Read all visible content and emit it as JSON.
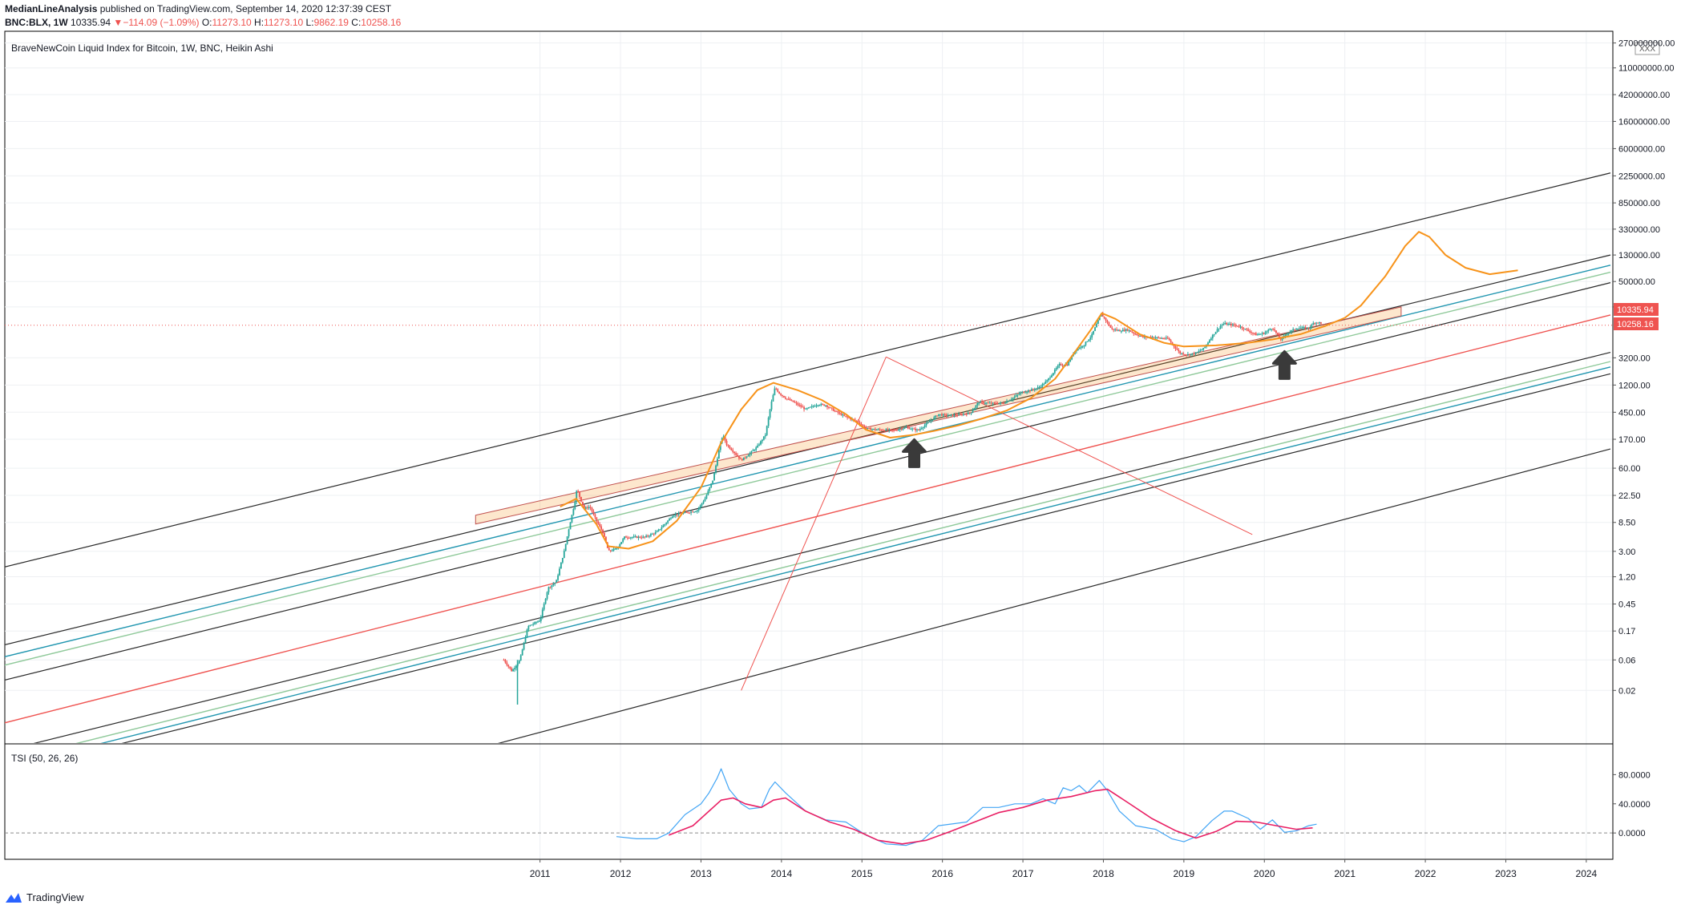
{
  "header": {
    "author": "MedianLineAnalysis",
    "published": "published on TradingView.com, September 14, 2020 12:37:39 CEST",
    "symbol": "BNC:BLX, 1W",
    "last": "10335.94",
    "change_arrow": "▼",
    "change": "−114.09 (−1.09%)",
    "o_label": "O:",
    "o_value": "11273.10",
    "h_label": "H:",
    "h_value": "11273.10",
    "l_label": "L:",
    "l_value": "9862.19",
    "c_label": "C:",
    "c_value": "10258.16"
  },
  "chart_title": "BraveNewCoin Liquid Index for Bitcoin, 1W, BNC, Heikin Ashi",
  "price_badges": [
    "10335.94",
    "10258.16"
  ],
  "scale_badge": "XXX",
  "indicator_label": "TSI (50, 26, 26)",
  "footer_brand": "TradingView",
  "colors": {
    "up": "#26a69a",
    "down": "#ef5350",
    "orange": "#f7931a",
    "tsi": "#42a5f5",
    "signal": "#e91e63",
    "black_line": "#2a2a2a",
    "blue_line": "#2196b0",
    "green_line": "#8fc99a",
    "red_line": "#ef5350"
  },
  "chart_data": [
    {
      "type": "candlestick",
      "style": "Heikin Ashi",
      "title": "BraveNewCoin Liquid Index for Bitcoin, 1W, BNC, Heikin Ashi",
      "y_scale": "log",
      "ylim": [
        0.003,
        400000000
      ],
      "xlim": [
        2004.35,
        2024.33
      ],
      "x_ticks": [
        "2011",
        "2012",
        "2013",
        "2014",
        "2015",
        "2016",
        "2017",
        "2018",
        "2019",
        "2020",
        "2021",
        "2022",
        "2023",
        "2024"
      ],
      "y_ticks": [
        "270000000.00",
        "110000000.00",
        "42000000.00",
        "16000000.00",
        "6000000.00",
        "2250000.00",
        "850000.00",
        "330000.00",
        "130000.00",
        "50000.00",
        "20000.00",
        "3200.00",
        "1200.00",
        "450.00",
        "170.00",
        "60.00",
        "22.50",
        "8.50",
        "3.00",
        "1.20",
        "0.45",
        "0.17",
        "0.06",
        "0.02"
      ],
      "price_path": [
        [
          2010.55,
          0.06
        ],
        [
          2010.65,
          0.04
        ],
        [
          2010.75,
          0.06
        ],
        [
          2010.85,
          0.2
        ],
        [
          2011.0,
          0.25
        ],
        [
          2011.1,
          0.8
        ],
        [
          2011.2,
          1.0
        ],
        [
          2011.3,
          3
        ],
        [
          2011.37,
          8
        ],
        [
          2011.43,
          17
        ],
        [
          2011.46,
          29
        ],
        [
          2011.5,
          20
        ],
        [
          2011.55,
          14
        ],
        [
          2011.62,
          15
        ],
        [
          2011.7,
          9
        ],
        [
          2011.78,
          6
        ],
        [
          2011.85,
          3
        ],
        [
          2011.95,
          3.3
        ],
        [
          2012.05,
          5
        ],
        [
          2012.15,
          5
        ],
        [
          2012.3,
          5
        ],
        [
          2012.45,
          6
        ],
        [
          2012.55,
          8
        ],
        [
          2012.65,
          11
        ],
        [
          2012.8,
          12
        ],
        [
          2012.95,
          13
        ],
        [
          2013.05,
          20
        ],
        [
          2013.15,
          40
        ],
        [
          2013.22,
          110
        ],
        [
          2013.27,
          200
        ],
        [
          2013.32,
          140
        ],
        [
          2013.4,
          110
        ],
        [
          2013.5,
          80
        ],
        [
          2013.6,
          100
        ],
        [
          2013.7,
          130
        ],
        [
          2013.8,
          200
        ],
        [
          2013.87,
          600
        ],
        [
          2013.92,
          1100
        ],
        [
          2013.97,
          900
        ],
        [
          2014.05,
          750
        ],
        [
          2014.15,
          650
        ],
        [
          2014.3,
          500
        ],
        [
          2014.45,
          600
        ],
        [
          2014.55,
          580
        ],
        [
          2014.65,
          480
        ],
        [
          2014.8,
          380
        ],
        [
          2014.95,
          320
        ],
        [
          2015.05,
          250
        ],
        [
          2015.2,
          240
        ],
        [
          2015.4,
          235
        ],
        [
          2015.55,
          260
        ],
        [
          2015.7,
          235
        ],
        [
          2015.85,
          330
        ],
        [
          2015.95,
          420
        ],
        [
          2016.05,
          400
        ],
        [
          2016.2,
          410
        ],
        [
          2016.35,
          440
        ],
        [
          2016.45,
          650
        ],
        [
          2016.6,
          620
        ],
        [
          2016.75,
          620
        ],
        [
          2016.85,
          720
        ],
        [
          2016.97,
          900
        ],
        [
          2017.1,
          1000
        ],
        [
          2017.2,
          1100
        ],
        [
          2017.3,
          1400
        ],
        [
          2017.45,
          2500
        ],
        [
          2017.55,
          2500
        ],
        [
          2017.65,
          4200
        ],
        [
          2017.75,
          5000
        ],
        [
          2017.85,
          7000
        ],
        [
          2017.92,
          11000
        ],
        [
          2017.97,
          15500
        ],
        [
          2018.02,
          13000
        ],
        [
          2018.1,
          9000
        ],
        [
          2018.2,
          8500
        ],
        [
          2018.3,
          8800
        ],
        [
          2018.4,
          7500
        ],
        [
          2018.5,
          6700
        ],
        [
          2018.6,
          6800
        ],
        [
          2018.7,
          6500
        ],
        [
          2018.8,
          6400
        ],
        [
          2018.87,
          5000
        ],
        [
          2018.95,
          3800
        ],
        [
          2019.05,
          3600
        ],
        [
          2019.15,
          3800
        ],
        [
          2019.25,
          4500
        ],
        [
          2019.35,
          7000
        ],
        [
          2019.45,
          10000
        ],
        [
          2019.5,
          11000
        ],
        [
          2019.6,
          10500
        ],
        [
          2019.7,
          9800
        ],
        [
          2019.8,
          8500
        ],
        [
          2019.9,
          7300
        ],
        [
          2020.0,
          7800
        ],
        [
          2020.1,
          9500
        ],
        [
          2020.2,
          6200
        ],
        [
          2020.3,
          8000
        ],
        [
          2020.4,
          9300
        ],
        [
          2020.5,
          9400
        ],
        [
          2020.55,
          9200
        ],
        [
          2020.62,
          11500
        ],
        [
          2020.7,
          11300
        ],
        [
          2020.71,
          10258
        ]
      ],
      "projection_curve": [
        [
          2011.25,
          15
        ],
        [
          2011.45,
          20
        ],
        [
          2011.7,
          8
        ],
        [
          2011.85,
          3.6
        ],
        [
          2012.1,
          3.3
        ],
        [
          2012.4,
          4.3
        ],
        [
          2012.7,
          9
        ],
        [
          2013.0,
          30
        ],
        [
          2013.25,
          150
        ],
        [
          2013.5,
          500
        ],
        [
          2013.7,
          1000
        ],
        [
          2013.9,
          1300
        ],
        [
          2014.2,
          1000
        ],
        [
          2014.5,
          700
        ],
        [
          2014.8,
          420
        ],
        [
          2015.05,
          240
        ],
        [
          2015.35,
          180
        ],
        [
          2015.65,
          200
        ],
        [
          2015.9,
          230
        ],
        [
          2016.2,
          280
        ],
        [
          2016.5,
          360
        ],
        [
          2016.8,
          480
        ],
        [
          2017.1,
          750
        ],
        [
          2017.4,
          1500
        ],
        [
          2017.65,
          4000
        ],
        [
          2017.85,
          9000
        ],
        [
          2017.98,
          16000
        ],
        [
          2018.15,
          13000
        ],
        [
          2018.45,
          7500
        ],
        [
          2018.75,
          5500
        ],
        [
          2019.0,
          4800
        ],
        [
          2019.4,
          5000
        ],
        [
          2019.8,
          5500
        ],
        [
          2020.1,
          6200
        ],
        [
          2020.45,
          7500
        ],
        [
          2020.75,
          10000
        ],
        [
          2021.0,
          13500
        ],
        [
          2021.2,
          21000
        ],
        [
          2021.5,
          60000
        ],
        [
          2021.75,
          180000
        ],
        [
          2021.92,
          300000
        ],
        [
          2022.05,
          250000
        ],
        [
          2022.25,
          130000
        ],
        [
          2022.5,
          82000
        ],
        [
          2022.8,
          65000
        ],
        [
          2023.15,
          75000
        ]
      ],
      "channel_lines": [
        {
          "color": "black",
          "from": [
            2004.3,
            1.65
          ],
          "to": [
            2024.3,
            2500000
          ]
        },
        {
          "color": "black",
          "from": [
            2004.3,
            0.1
          ],
          "to": [
            2024.3,
            130000
          ]
        },
        {
          "color": "blue",
          "from": [
            2004.3,
            0.065
          ],
          "to": [
            2024.3,
            90000
          ]
        },
        {
          "color": "green",
          "from": [
            2004.3,
            0.048
          ],
          "to": [
            2024.3,
            70000
          ]
        },
        {
          "color": "black",
          "from": [
            2004.3,
            0.028
          ],
          "to": [
            2024.3,
            48000
          ]
        },
        {
          "color": "red",
          "from": [
            2004.3,
            0.006
          ],
          "to": [
            2024.3,
            15000
          ]
        },
        {
          "color": "black",
          "from": [
            2004.3,
            0.0022
          ],
          "to": [
            2024.3,
            3900
          ]
        },
        {
          "color": "green",
          "from": [
            2004.3,
            0.0015
          ],
          "to": [
            2024.3,
            2800
          ]
        },
        {
          "color": "blue",
          "from": [
            2004.3,
            0.0012
          ],
          "to": [
            2024.3,
            2300
          ]
        },
        {
          "color": "black",
          "from": [
            2004.3,
            0.001
          ],
          "to": [
            2024.3,
            1800
          ]
        },
        {
          "color": "black",
          "from": [
            2007.5,
            0.0003
          ],
          "to": [
            2024.3,
            120
          ]
        }
      ],
      "resistance_band": {
        "from": [
          2010.2,
          11
        ],
        "to": [
          2021.7,
          20000
        ],
        "lower_from": [
          2010.2,
          8
        ],
        "lower_to": [
          2021.7,
          14500
        ]
      },
      "red_cross_lines": [
        {
          "from": [
            2013.5,
            0.02
          ],
          "to": [
            2015.3,
            3300
          ]
        },
        {
          "from": [
            2015.3,
            3300
          ],
          "to": [
            2019.85,
            5.5
          ]
        }
      ],
      "arrows": [
        {
          "x": 2015.65,
          "y": 100,
          "label": "up"
        },
        {
          "x": 2020.25,
          "y": 2400,
          "label": "up"
        }
      ],
      "last_price_line": 10335.94
    },
    {
      "type": "line",
      "title": "TSI (50, 26, 26)",
      "ylim": [
        -35,
        120
      ],
      "y_ticks": [
        "80.0000",
        "40.0000",
        "0.0000"
      ],
      "zero_line": 0,
      "series": [
        {
          "name": "TSI",
          "color": "tsi",
          "points": [
            [
              2011.95,
              -5
            ],
            [
              2012.2,
              -8
            ],
            [
              2012.45,
              -8
            ],
            [
              2012.6,
              0
            ],
            [
              2012.8,
              25
            ],
            [
              2013.0,
              40
            ],
            [
              2013.1,
              55
            ],
            [
              2013.2,
              75
            ],
            [
              2013.25,
              88
            ],
            [
              2013.35,
              60
            ],
            [
              2013.5,
              40
            ],
            [
              2013.6,
              33
            ],
            [
              2013.75,
              35
            ],
            [
              2013.85,
              60
            ],
            [
              2013.92,
              70
            ],
            [
              2014.05,
              55
            ],
            [
              2014.3,
              30
            ],
            [
              2014.55,
              18
            ],
            [
              2014.8,
              15
            ],
            [
              2015.05,
              -3
            ],
            [
              2015.3,
              -15
            ],
            [
              2015.55,
              -17
            ],
            [
              2015.75,
              -10
            ],
            [
              2015.95,
              10
            ],
            [
              2016.3,
              15
            ],
            [
              2016.5,
              35
            ],
            [
              2016.7,
              35
            ],
            [
              2016.9,
              40
            ],
            [
              2017.1,
              40
            ],
            [
              2017.25,
              47
            ],
            [
              2017.4,
              40
            ],
            [
              2017.5,
              62
            ],
            [
              2017.6,
              58
            ],
            [
              2017.7,
              65
            ],
            [
              2017.8,
              55
            ],
            [
              2017.95,
              72
            ],
            [
              2018.05,
              58
            ],
            [
              2018.2,
              30
            ],
            [
              2018.4,
              10
            ],
            [
              2018.65,
              5
            ],
            [
              2018.85,
              -8
            ],
            [
              2019.0,
              -12
            ],
            [
              2019.15,
              -5
            ],
            [
              2019.35,
              17
            ],
            [
              2019.5,
              30
            ],
            [
              2019.6,
              30
            ],
            [
              2019.8,
              20
            ],
            [
              2019.95,
              5
            ],
            [
              2020.1,
              18
            ],
            [
              2020.25,
              1
            ],
            [
              2020.4,
              3
            ],
            [
              2020.55,
              10
            ],
            [
              2020.65,
              12
            ]
          ]
        },
        {
          "name": "Signal",
          "color": "signal",
          "points": [
            [
              2012.6,
              -3
            ],
            [
              2012.9,
              10
            ],
            [
              2013.1,
              30
            ],
            [
              2013.25,
              45
            ],
            [
              2013.4,
              48
            ],
            [
              2013.55,
              40
            ],
            [
              2013.75,
              35
            ],
            [
              2013.9,
              45
            ],
            [
              2014.05,
              48
            ],
            [
              2014.3,
              30
            ],
            [
              2014.6,
              15
            ],
            [
              2014.9,
              5
            ],
            [
              2015.2,
              -10
            ],
            [
              2015.5,
              -15
            ],
            [
              2015.8,
              -10
            ],
            [
              2016.1,
              2
            ],
            [
              2016.4,
              15
            ],
            [
              2016.7,
              28
            ],
            [
              2017.0,
              35
            ],
            [
              2017.3,
              45
            ],
            [
              2017.6,
              50
            ],
            [
              2017.9,
              58
            ],
            [
              2018.05,
              60
            ],
            [
              2018.3,
              42
            ],
            [
              2018.6,
              20
            ],
            [
              2018.9,
              3
            ],
            [
              2019.15,
              -7
            ],
            [
              2019.4,
              2
            ],
            [
              2019.65,
              16
            ],
            [
              2019.9,
              15
            ],
            [
              2020.15,
              10
            ],
            [
              2020.4,
              5
            ],
            [
              2020.6,
              7
            ]
          ]
        }
      ]
    }
  ]
}
